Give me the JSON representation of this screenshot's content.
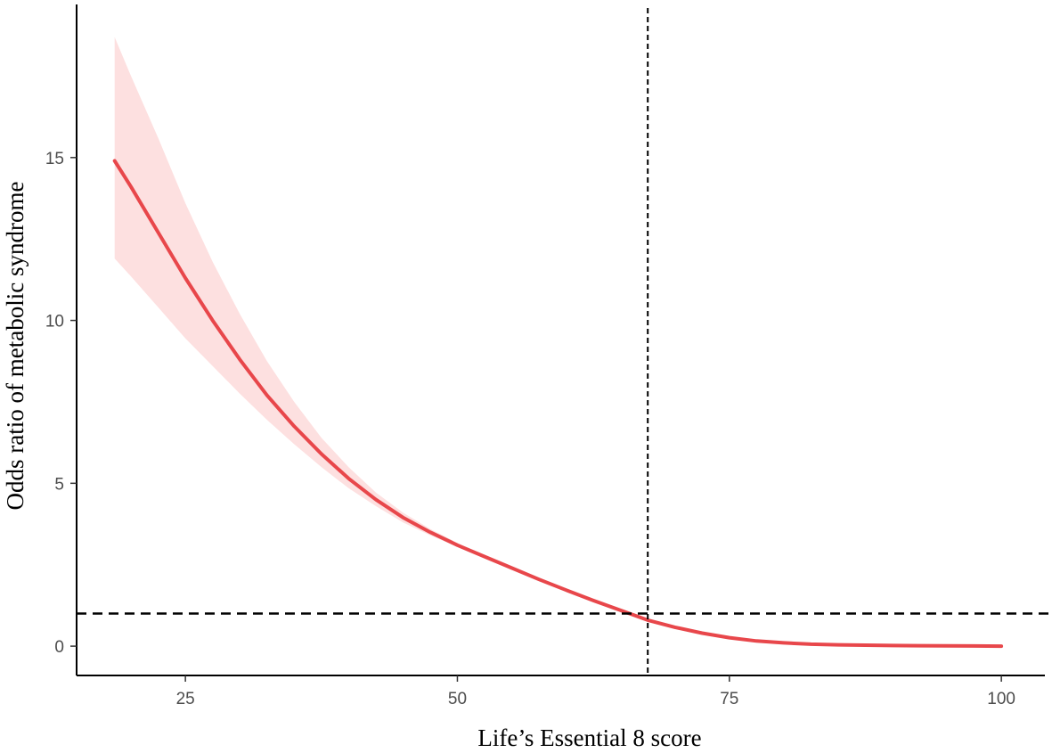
{
  "chart_data": {
    "type": "line",
    "title": "",
    "xlabel": "Life’s Essential 8 score",
    "ylabel": "Odds ratio of metabolic syndrome",
    "xlim": [
      15,
      104
    ],
    "ylim": [
      -0.9,
      19.7
    ],
    "x_ticks": [
      25,
      50,
      75,
      100
    ],
    "y_ticks": [
      0,
      5,
      10,
      15
    ],
    "grid": false,
    "legend": "none",
    "reference_lines": {
      "y": 1,
      "x": 67.5
    },
    "colors": {
      "line": "#e8474b",
      "band": "#fde0e0",
      "reference": "#000000",
      "axis": "#000000"
    },
    "series": [
      {
        "x": [
          18.5,
          20,
          22.5,
          25,
          27.5,
          30,
          32.5,
          35,
          37.5,
          40,
          42.5,
          45,
          47.5,
          50,
          52.5,
          55,
          57.5,
          60,
          62.5,
          65,
          67.5,
          70,
          72.5,
          75,
          77.5,
          80,
          82.5,
          85,
          87.5,
          90,
          92.5,
          95,
          97.5,
          100
        ],
        "y": [
          14.9,
          14.1,
          12.7,
          11.3,
          10.0,
          8.8,
          7.7,
          6.75,
          5.9,
          5.15,
          4.5,
          3.95,
          3.5,
          3.1,
          2.75,
          2.4,
          2.05,
          1.72,
          1.4,
          1.1,
          0.8,
          0.58,
          0.4,
          0.26,
          0.16,
          0.1,
          0.06,
          0.04,
          0.03,
          0.02,
          0.015,
          0.01,
          0.005,
          0.0
        ],
        "lower": [
          11.9,
          11.35,
          10.4,
          9.45,
          8.6,
          7.75,
          6.95,
          6.2,
          5.5,
          4.85,
          4.3,
          3.8,
          3.4,
          3.05,
          2.73,
          2.4,
          2.05,
          1.72,
          1.4,
          1.1,
          0.8,
          0.58,
          0.4,
          0.26,
          0.16,
          0.1,
          0.06,
          0.04,
          0.03,
          0.02,
          0.015,
          0.01,
          0.005,
          0.0
        ],
        "upper": [
          18.7,
          17.5,
          15.6,
          13.6,
          11.8,
          10.2,
          8.75,
          7.5,
          6.4,
          5.5,
          4.72,
          4.1,
          3.6,
          3.17,
          2.78,
          2.4,
          2.05,
          1.72,
          1.4,
          1.1,
          0.8,
          0.58,
          0.4,
          0.26,
          0.16,
          0.1,
          0.06,
          0.04,
          0.03,
          0.02,
          0.015,
          0.01,
          0.005,
          0.0
        ]
      }
    ]
  }
}
